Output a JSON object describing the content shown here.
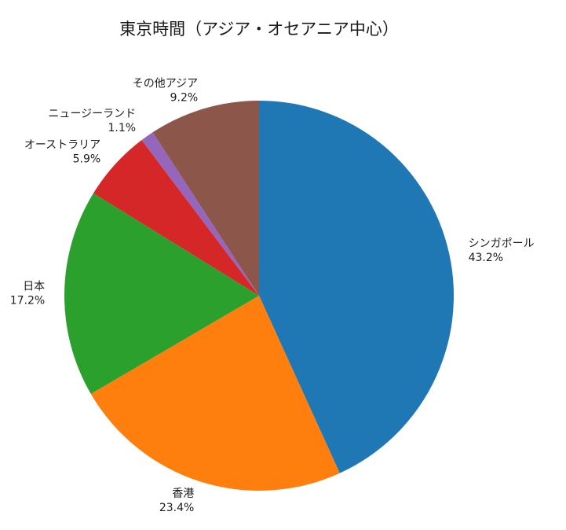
{
  "chart_data": {
    "type": "pie",
    "title": "東京時間（アジア・オセアニア中心）",
    "start_angle_deg": 90,
    "direction": "clockwise",
    "slices": [
      {
        "label": "シンガポール",
        "value": 43.2,
        "pct_label": "43.2%",
        "color": "#1f77b4"
      },
      {
        "label": "香港",
        "value": 23.4,
        "pct_label": "23.4%",
        "color": "#ff7f0e"
      },
      {
        "label": "日本",
        "value": 17.2,
        "pct_label": "17.2%",
        "color": "#2ca02c"
      },
      {
        "label": "オーストラリア",
        "value": 5.9,
        "pct_label": "5.9%",
        "color": "#d62728"
      },
      {
        "label": "ニュージーランド",
        "value": 1.1,
        "pct_label": "1.1%",
        "color": "#9467bd"
      },
      {
        "label": "その他アジア",
        "value": 9.2,
        "pct_label": "9.2%",
        "color": "#8c564b"
      }
    ]
  }
}
